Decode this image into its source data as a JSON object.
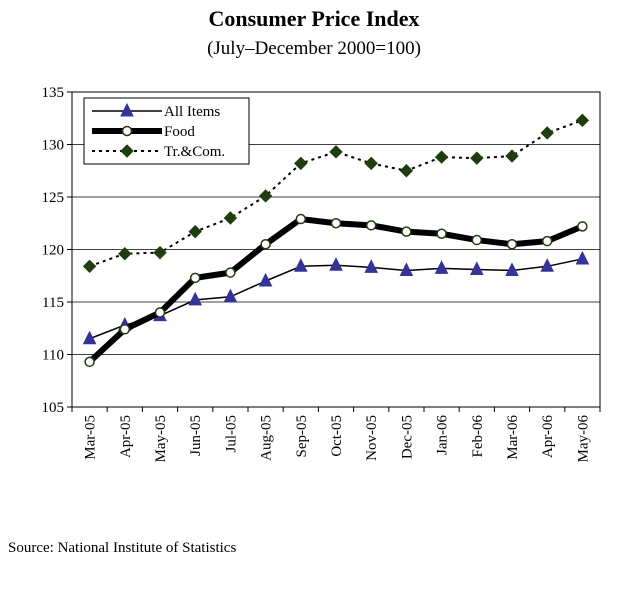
{
  "chart_data": {
    "type": "line",
    "title": "Consumer Price Index",
    "subtitle": "(July–December 2000=100)",
    "categories": [
      "Mar-05",
      "Apr-05",
      "May-05",
      "Jun-05",
      "Jul-05",
      "Aug-05",
      "Sep-05",
      "Oct-05",
      "Nov-05",
      "Dec-05",
      "Jan-06",
      "Feb-06",
      "Mar-06",
      "Apr-06",
      "May-06"
    ],
    "series": [
      {
        "name": "All Items",
        "color": "#333399",
        "values": [
          111.5,
          112.8,
          113.7,
          115.2,
          115.5,
          117.0,
          118.4,
          118.5,
          118.3,
          118.0,
          118.2,
          118.1,
          118.0,
          118.4,
          119.1
        ]
      },
      {
        "name": "Food",
        "color": "#000000",
        "values": [
          109.3,
          112.4,
          114.0,
          117.3,
          117.8,
          120.5,
          122.9,
          122.5,
          122.3,
          121.7,
          121.5,
          120.9,
          120.5,
          120.8,
          122.2
        ]
      },
      {
        "name": "Tr.&Com.",
        "color": "#1f3d0f",
        "values": [
          118.4,
          119.6,
          119.7,
          121.7,
          123.0,
          125.1,
          128.2,
          129.3,
          128.2,
          127.5,
          128.8,
          128.7,
          128.9,
          131.1,
          132.3
        ]
      }
    ],
    "ylim": [
      105,
      135
    ],
    "yticks": [
      105,
      110,
      115,
      120,
      125,
      130,
      135
    ],
    "grid": true,
    "legend": "top-left",
    "source": "Source: National Institute of Statistics"
  }
}
